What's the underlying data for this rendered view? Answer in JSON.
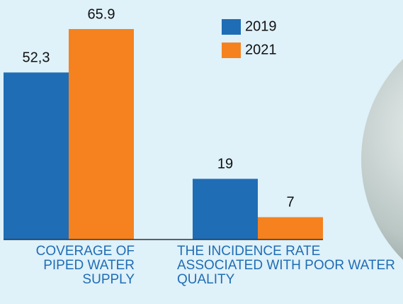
{
  "chart_data": {
    "type": "bar",
    "categories": [
      "COVERAGE OF PIPED WATER SUPPLY",
      "THE INCIDENCE RATE ASSOCIATED WITH POOR WATER QUALITY"
    ],
    "series": [
      {
        "name": "2019",
        "color": "#1f6db5",
        "values": [
          52.3,
          19
        ],
        "value_labels": [
          "52,3",
          "19"
        ]
      },
      {
        "name": "2021",
        "color": "#f5821f",
        "values": [
          65.9,
          7
        ]
      }
    ]
  }
}
